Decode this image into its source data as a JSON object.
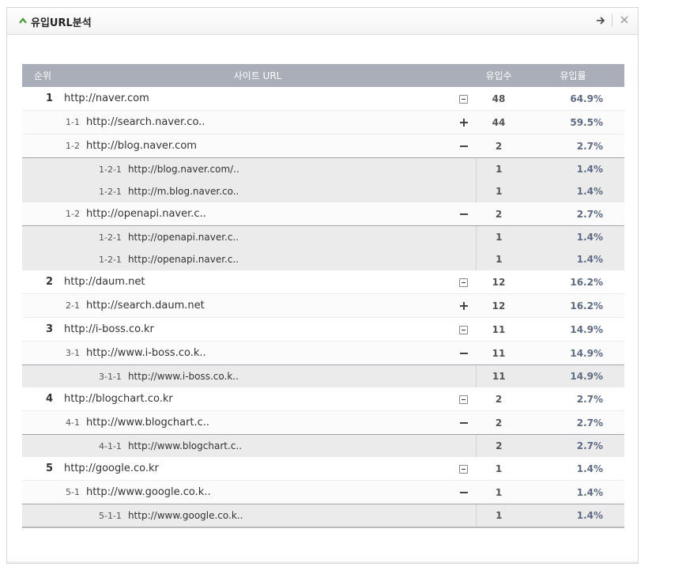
{
  "widget": {
    "title": "유입URL분석"
  },
  "table": {
    "headers": {
      "rank": "순위",
      "url": "사이트 URL",
      "count": "유입수",
      "rate": "유입률"
    },
    "rows": [
      {
        "level": 1,
        "rank": "1",
        "sub": "",
        "url": "http://naver.com",
        "toggle": "box",
        "count": "48",
        "rate": "64.9%"
      },
      {
        "level": 2,
        "rank": "",
        "sub": "1-1",
        "url": "http://search.naver.co..",
        "toggle": "plus",
        "count": "44",
        "rate": "59.5%"
      },
      {
        "level": 2,
        "rank": "",
        "sub": "1-2",
        "url": "http://blog.naver.com",
        "toggle": "minus",
        "count": "2",
        "rate": "2.7%"
      },
      {
        "level": 3,
        "rank": "",
        "sub": "1-2-1",
        "url": "http://blog.naver.com/..",
        "toggle": "",
        "count": "1",
        "rate": "1.4%"
      },
      {
        "level": 3,
        "rank": "",
        "sub": "1-2-1",
        "url": "http://m.blog.naver.co..",
        "toggle": "",
        "count": "1",
        "rate": "1.4%"
      },
      {
        "level": 2,
        "rank": "",
        "sub": "1-2",
        "url": "http://openapi.naver.c..",
        "toggle": "minus",
        "count": "2",
        "rate": "2.7%"
      },
      {
        "level": 3,
        "rank": "",
        "sub": "1-2-1",
        "url": "http://openapi.naver.c..",
        "toggle": "",
        "count": "1",
        "rate": "1.4%"
      },
      {
        "level": 3,
        "rank": "",
        "sub": "1-2-1",
        "url": "http://openapi.naver.c..",
        "toggle": "",
        "count": "1",
        "rate": "1.4%"
      },
      {
        "level": 1,
        "rank": "2",
        "sub": "",
        "url": "http://daum.net",
        "toggle": "box",
        "count": "12",
        "rate": "16.2%"
      },
      {
        "level": 2,
        "rank": "",
        "sub": "2-1",
        "url": "http://search.daum.net",
        "toggle": "plus",
        "count": "12",
        "rate": "16.2%"
      },
      {
        "level": 1,
        "rank": "3",
        "sub": "",
        "url": "http://i-boss.co.kr",
        "toggle": "box",
        "count": "11",
        "rate": "14.9%"
      },
      {
        "level": 2,
        "rank": "",
        "sub": "3-1",
        "url": "http://www.i-boss.co.k..",
        "toggle": "minus",
        "count": "11",
        "rate": "14.9%"
      },
      {
        "level": 3,
        "rank": "",
        "sub": "3-1-1",
        "url": "http://www.i-boss.co.k..",
        "toggle": "",
        "count": "11",
        "rate": "14.9%"
      },
      {
        "level": 1,
        "rank": "4",
        "sub": "",
        "url": "http://blogchart.co.kr",
        "toggle": "box",
        "count": "2",
        "rate": "2.7%"
      },
      {
        "level": 2,
        "rank": "",
        "sub": "4-1",
        "url": "http://www.blogchart.c..",
        "toggle": "minus",
        "count": "2",
        "rate": "2.7%"
      },
      {
        "level": 3,
        "rank": "",
        "sub": "4-1-1",
        "url": "http://www.blogchart.c..",
        "toggle": "",
        "count": "2",
        "rate": "2.7%"
      },
      {
        "level": 1,
        "rank": "5",
        "sub": "",
        "url": "http://google.co.kr",
        "toggle": "box",
        "count": "1",
        "rate": "1.4%"
      },
      {
        "level": 2,
        "rank": "",
        "sub": "5-1",
        "url": "http://www.google.co.k..",
        "toggle": "minus",
        "count": "1",
        "rate": "1.4%"
      },
      {
        "level": 3,
        "rank": "",
        "sub": "5-1-1",
        "url": "http://www.google.co.k..",
        "toggle": "",
        "count": "1",
        "rate": "1.4%"
      }
    ]
  },
  "icons": {
    "collapse": "chevron-up-icon",
    "go": "arrow-right-icon",
    "close": "close-icon"
  },
  "colors": {
    "header_bg": "#a9aeb8",
    "rate_text": "#5d6b85",
    "chevron": "#3a9a2c",
    "sub_bg": "#ebebeb"
  }
}
